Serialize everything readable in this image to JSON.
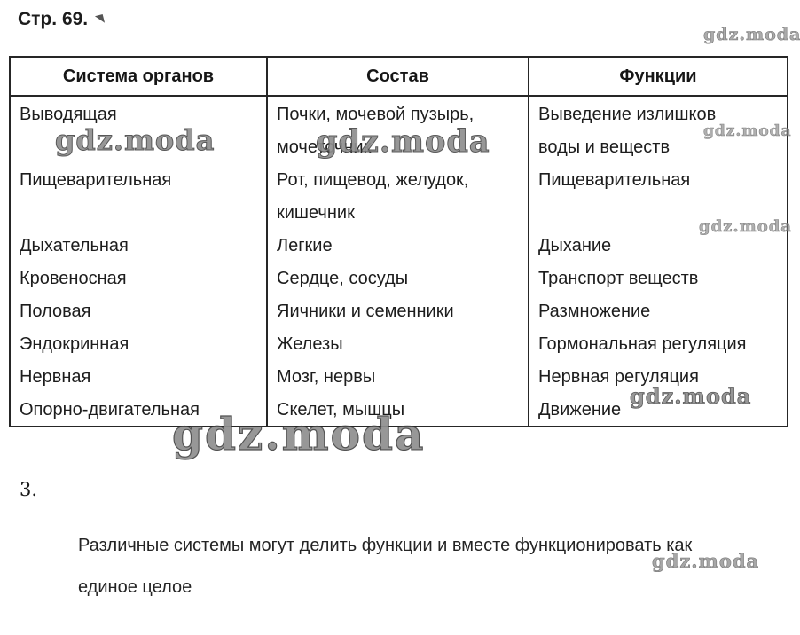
{
  "page": {
    "title": "Стр. 69.",
    "section_number": "3."
  },
  "watermark": {
    "text": "gdz.moda"
  },
  "table": {
    "headers": [
      "Система органов",
      "Состав",
      "Функции"
    ],
    "body_lines": [
      {
        "c1": "Выводящая",
        "c2": "Почки, мочевой пузырь,",
        "c3": "Выведение излишков"
      },
      {
        "c1": "",
        "c2": "мочеточник",
        "c3": "воды и веществ"
      },
      {
        "c1": "Пищеварительная",
        "c2": "Рот, пищевод, желудок,",
        "c3": "Пищеварительная"
      },
      {
        "c1": "",
        "c2": "кишечник",
        "c3": ""
      },
      {
        "c1": "Дыхательная",
        "c2": "Легкие",
        "c3": "Дыхание"
      },
      {
        "c1": "Кровеносная",
        "c2": "Сердце, сосуды",
        "c3": "Транспорт веществ"
      },
      {
        "c1": "Половая",
        "c2": "Яичники и семенники",
        "c3": "Размножение"
      },
      {
        "c1": "Эндокринная",
        "c2": "Железы",
        "c3": "Гормональная регуляция"
      },
      {
        "c1": "Нервная",
        "c2": "Мозг, нервы",
        "c3": "Нервная регуляция"
      },
      {
        "c1": "Опорно-двигательная",
        "c2": "Скелет, мышцы",
        "c3": "Движение"
      }
    ]
  },
  "answer": {
    "lines": [
      "Различные системы могут делить функции и вместе функционировать как",
      "единое целое"
    ]
  }
}
